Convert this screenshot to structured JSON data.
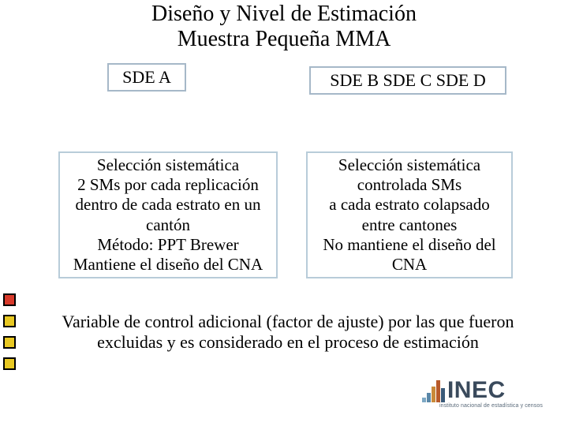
{
  "title_line1": "Diseño y Nivel de Estimación",
  "title_line2": "Muestra Pequeña MMA",
  "box_a": "SDE A",
  "box_bcd": "SDE B   SDE C   SDE D",
  "desc_left": "Selección sistemática\n2 SMs por cada replicación\ndentro de cada estrato en un\ncantón\nMétodo: PPT Brewer\nMantiene el diseño del CNA",
  "desc_right": "Selección sistemática\ncontrolada SMs\na cada estrato colapsado\nentre cantones\nNo mantiene el diseño del\nCNA",
  "bottom": "Variable de control adicional (factor de ajuste) por las que fueron excluidas y es considerado en el proceso de estimación",
  "side_squares": {
    "count": 4,
    "fills": [
      "#d83a2b",
      "#e8c822",
      "#e8c822",
      "#e8c822"
    ]
  },
  "box_border_color": "#a6b8c8",
  "logo": {
    "text": "INEC",
    "sub": "instituto nacional de estadística y censos",
    "bars": [
      {
        "h": 6,
        "c": "#7da8c4"
      },
      {
        "h": 12,
        "c": "#5a87a8"
      },
      {
        "h": 20,
        "c": "#c98a3a"
      },
      {
        "h": 28,
        "c": "#b85a2a"
      },
      {
        "h": 18,
        "c": "#3a5a78"
      }
    ]
  }
}
